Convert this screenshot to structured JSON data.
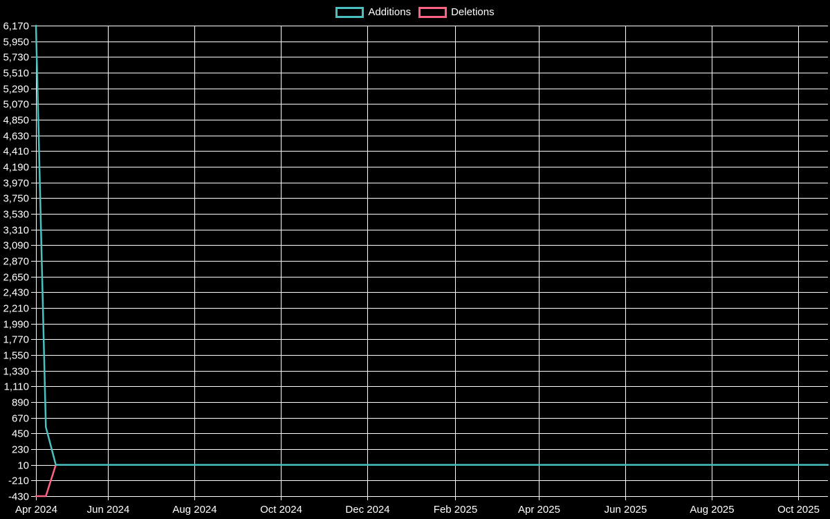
{
  "chart_data": {
    "type": "line",
    "title": "",
    "background_color": "#000000",
    "grid_color": "#ffffff",
    "text_color": "#ffffff",
    "grid": true,
    "legend_position": "top-center",
    "legend": [
      {
        "label": "Additions",
        "color": "#4bc0c0"
      },
      {
        "label": "Deletions",
        "color": "#ff6384"
      }
    ],
    "x_axis": {
      "type": "time",
      "start": "2024-04-11",
      "end": "2025-10-22",
      "tick_labels": [
        "Apr 2024",
        "Jun 2024",
        "Aug 2024",
        "Oct 2024",
        "Dec 2024",
        "Feb 2025",
        "Apr 2025",
        "Jun 2025",
        "Aug 2025",
        "Oct 2025"
      ],
      "ticks": [
        {
          "label": "Apr 2024",
          "date": "2024-04-11"
        },
        {
          "label": "Jun 2024",
          "date": "2024-06-01"
        },
        {
          "label": "Aug 2024",
          "date": "2024-08-01"
        },
        {
          "label": "Oct 2024",
          "date": "2024-10-01"
        },
        {
          "label": "Dec 2024",
          "date": "2024-12-01"
        },
        {
          "label": "Feb 2025",
          "date": "2025-02-01"
        },
        {
          "label": "Apr 2025",
          "date": "2025-04-01"
        },
        {
          "label": "Jun 2025",
          "date": "2025-06-01"
        },
        {
          "label": "Aug 2025",
          "date": "2025-08-01"
        },
        {
          "label": "Oct 2025",
          "date": "2025-10-01"
        }
      ]
    },
    "y_axis": {
      "min": -430,
      "max": 6170,
      "step": 220,
      "tick_labels": [
        "6,170",
        "5,950",
        "5,730",
        "5,510",
        "5,290",
        "5,070",
        "4,850",
        "4,630",
        "4,410",
        "4,190",
        "3,970",
        "3,750",
        "3,530",
        "3,310",
        "3,090",
        "2,870",
        "2,650",
        "2,430",
        "2,210",
        "1,990",
        "1,770",
        "1,550",
        "1,330",
        "1,110",
        "890",
        "670",
        "450",
        "230",
        "10",
        "-210",
        "-430"
      ]
    },
    "series": [
      {
        "name": "Deletions",
        "color": "#ff6384",
        "points": [
          [
            "2024-04-11",
            -430
          ],
          [
            "2024-04-18",
            -430
          ],
          [
            "2024-04-25",
            10
          ],
          [
            "2025-10-22",
            10
          ]
        ]
      },
      {
        "name": "Additions",
        "color": "#4bc0c0",
        "points": [
          [
            "2024-04-11",
            6170
          ],
          [
            "2024-04-18",
            540
          ],
          [
            "2024-04-25",
            10
          ],
          [
            "2025-10-22",
            10
          ]
        ]
      }
    ]
  }
}
